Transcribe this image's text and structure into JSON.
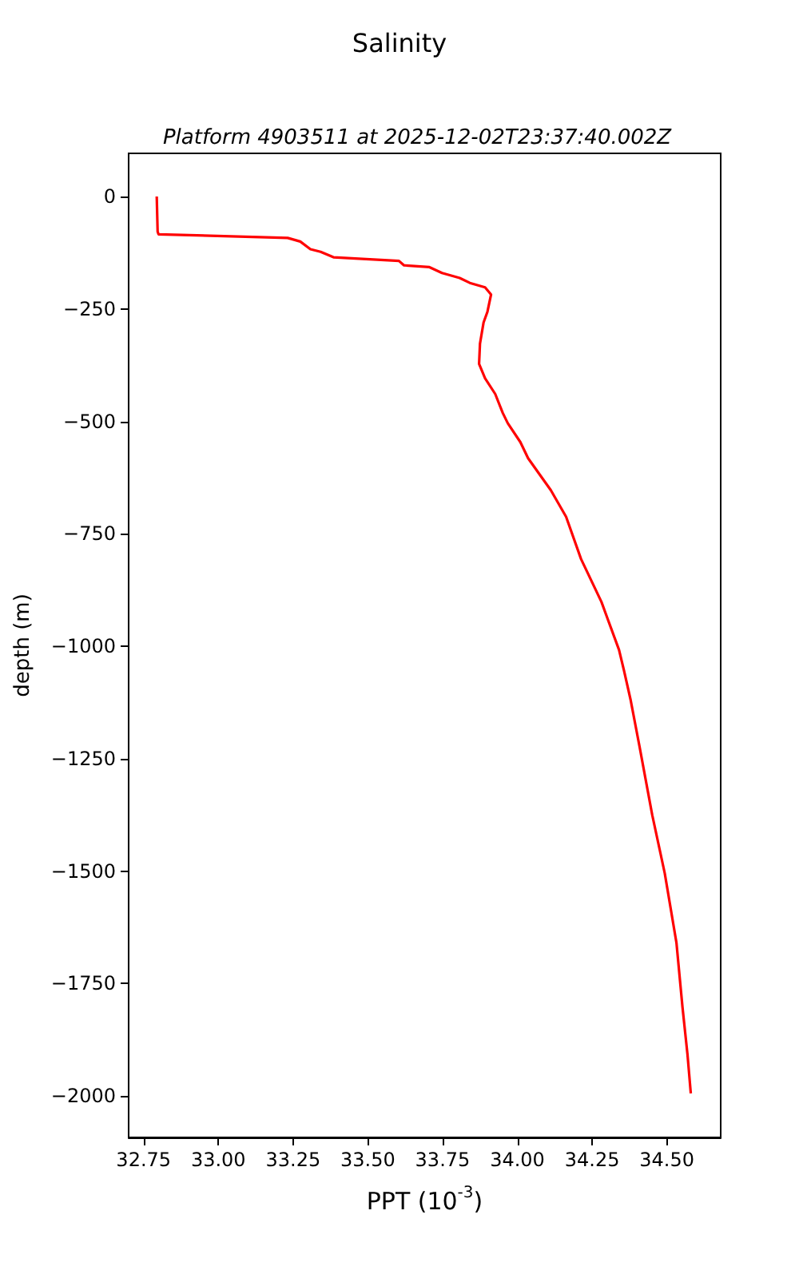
{
  "chart_data": {
    "type": "line",
    "title": "Salinity",
    "subtitle": "Platform 4903511 at 2025-12-02T23:37:40.002Z",
    "xlabel": "PPT (10$^{-3}$)",
    "ylabel": "depth (m)",
    "series": [
      {
        "color": "#ff0000",
        "x": [
          32.794,
          32.797,
          32.8,
          33.232,
          33.274,
          33.308,
          33.342,
          33.385,
          33.604,
          33.621,
          33.706,
          33.748,
          33.807,
          33.841,
          33.892,
          33.912,
          33.9,
          33.887,
          33.875,
          33.872,
          33.892,
          33.926,
          33.951,
          33.968,
          34.01,
          34.036,
          34.112,
          34.163,
          34.213,
          34.281,
          34.34,
          34.357,
          34.379,
          34.408,
          34.451,
          34.493,
          34.532,
          34.552,
          34.569,
          34.58
        ],
        "values": [
          0,
          -78,
          -84,
          -92,
          -100,
          -117,
          -123,
          -135,
          -143,
          -153,
          -157,
          -170,
          -181,
          -192,
          -202,
          -218,
          -256,
          -280,
          -327,
          -372,
          -404,
          -439,
          -481,
          -504,
          -546,
          -582,
          -653,
          -712,
          -806,
          -901,
          -1008,
          -1055,
          -1120,
          -1221,
          -1375,
          -1505,
          -1659,
          -1801,
          -1908,
          -1994
        ]
      }
    ],
    "xlim": [
      32.7,
      34.68
    ],
    "xticks": [
      {
        "value": 32.75,
        "label": "32.75"
      },
      {
        "value": 33.0,
        "label": "33.00"
      },
      {
        "value": 33.25,
        "label": "33.25"
      },
      {
        "value": 33.5,
        "label": "33.50"
      },
      {
        "value": 33.75,
        "label": "33.75"
      },
      {
        "value": 34.0,
        "label": "34.00"
      },
      {
        "value": 34.25,
        "label": "34.25"
      },
      {
        "value": 34.5,
        "label": "34.50"
      }
    ],
    "ylim": [
      -2092,
      96
    ],
    "yticks": [
      0,
      -250,
      -500,
      -750,
      -1000,
      -1250,
      -1500,
      -1750,
      -2000
    ],
    "grid": false,
    "marker": "none",
    "line_style": "solid"
  }
}
